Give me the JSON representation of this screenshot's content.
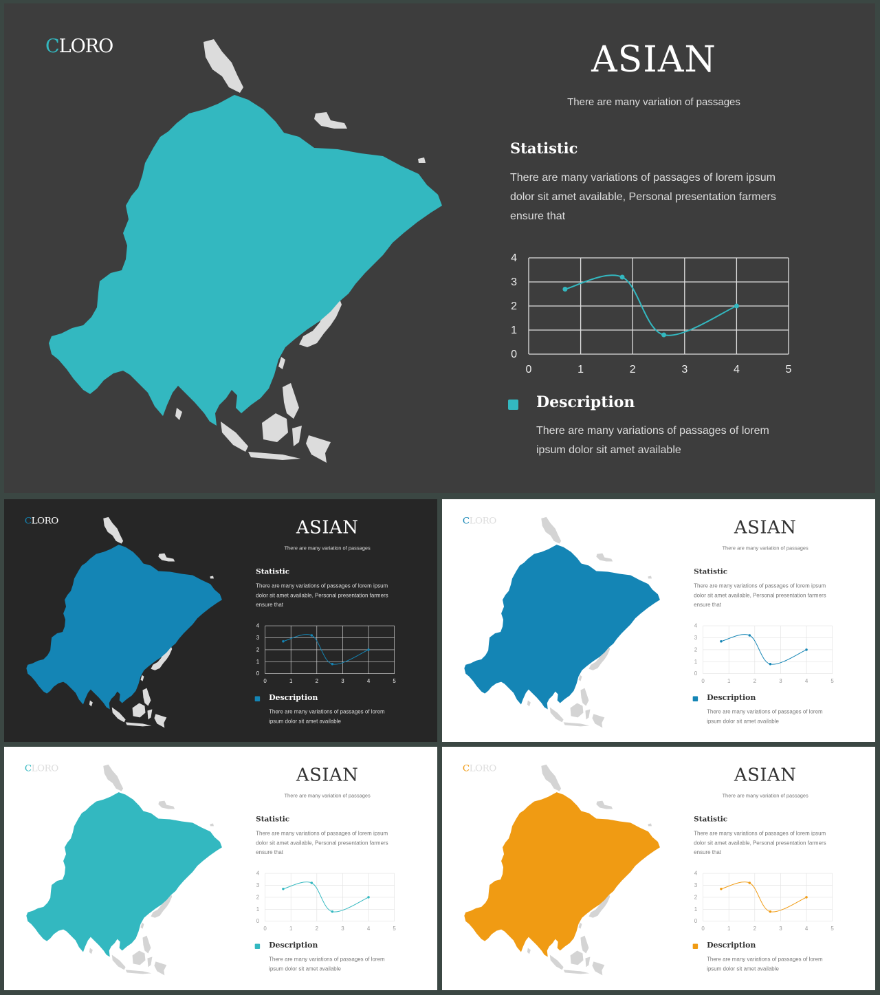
{
  "content": {
    "logo_first": "C",
    "logo_rest": "LORO",
    "title": "ASIAN",
    "subtitle": "There are many variation of passages",
    "statistic_heading": "Statistic",
    "statistic_text": "There are many variations of passages of lorem ipsum dolor sit amet available, Personal presentation farmers ensure that",
    "description_heading": "Description",
    "description_text": "There are many variations of passages of lorem ipsum dolor sit amet available"
  },
  "themes": [
    {
      "id": "dark-teal",
      "bg": "#3d3d3d",
      "accent": "#33b8c0",
      "map": "#33b8c0",
      "islands": "#dcdcdc",
      "title": "#ffffff",
      "sub": "#dddddd",
      "head": "#ffffff",
      "body": "#dddddd",
      "tick": "#eeeeee",
      "grid": "#e0e0e0",
      "logo": "#ffffff"
    },
    {
      "id": "dark-blue",
      "bg": "#262626",
      "accent": "#1485b5",
      "map": "#1485b5",
      "islands": "#dcdcdc",
      "title": "#ffffff",
      "sub": "#dddddd",
      "head": "#ffffff",
      "body": "#dddddd",
      "tick": "#eeeeee",
      "grid": "#dcdcdc",
      "logo": "#ffffff"
    },
    {
      "id": "light-blue",
      "bg": "#ffffff",
      "accent": "#1485b5",
      "map": "#1485b5",
      "islands": "#d4d4d4",
      "title": "#333333",
      "sub": "#777777",
      "head": "#333333",
      "body": "#777777",
      "tick": "#999999",
      "grid": "#e2e2e2",
      "logo": "#dddddd"
    },
    {
      "id": "light-teal",
      "bg": "#ffffff",
      "accent": "#33b8c0",
      "map": "#33b8c0",
      "islands": "#d4d4d4",
      "title": "#333333",
      "sub": "#777777",
      "head": "#333333",
      "body": "#777777",
      "tick": "#999999",
      "grid": "#e2e2e2",
      "logo": "#dddddd"
    },
    {
      "id": "light-orange",
      "bg": "#ffffff",
      "accent": "#f09b13",
      "map": "#f09b13",
      "islands": "#d4d4d4",
      "title": "#333333",
      "sub": "#777777",
      "head": "#333333",
      "body": "#777777",
      "tick": "#999999",
      "grid": "#e2e2e2",
      "logo": "#dddddd"
    }
  ],
  "chart_data": {
    "type": "line",
    "xlim": [
      0,
      5
    ],
    "ylim": [
      0,
      4
    ],
    "x_ticks": [
      "0",
      "1",
      "2",
      "3",
      "4",
      "5"
    ],
    "y_ticks": [
      "0",
      "1",
      "2",
      "3",
      "4"
    ],
    "grid": true,
    "smooth": true,
    "series": [
      {
        "x": [
          0.7,
          1.8,
          2.6,
          4.0
        ],
        "y": [
          2.7,
          3.2,
          0.8,
          2.0
        ]
      }
    ]
  }
}
